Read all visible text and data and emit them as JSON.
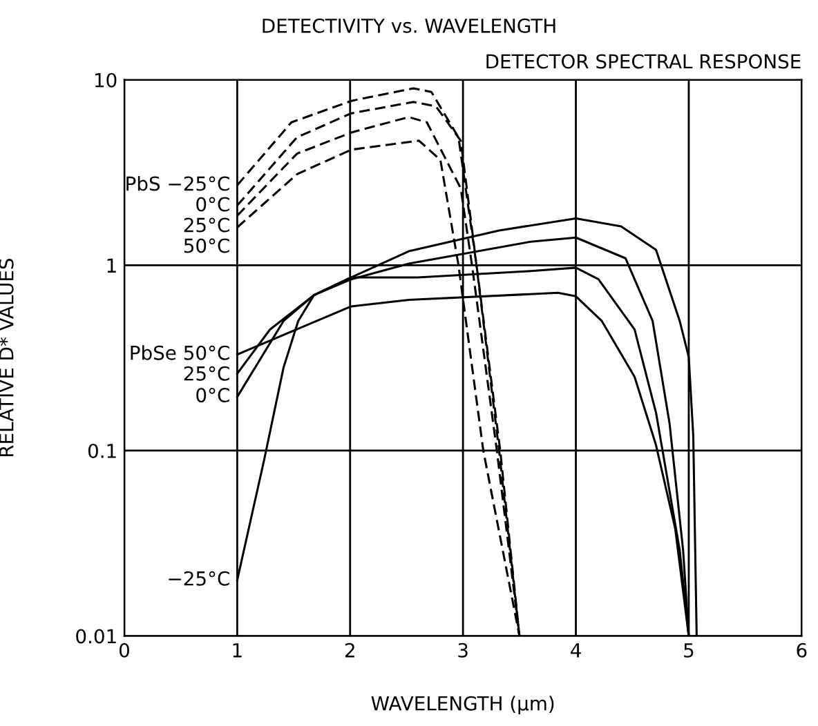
{
  "chart_data": {
    "type": "line",
    "title": "DETECTIVITY vs. WAVELENGTH",
    "subtitle": "DETECTOR SPECTRAL RESPONSE",
    "xlabel": "WAVELENGTH (µm)",
    "ylabel": "RELATIVE D* VALUES",
    "log": "y",
    "grid": true,
    "legend": false,
    "marker": "none",
    "xlim": [
      0,
      6
    ],
    "xticks": [
      0,
      1,
      2,
      3,
      4,
      5,
      6
    ],
    "ylim": [
      0.01,
      10
    ],
    "yticks": [
      0.01,
      0.1,
      1,
      10
    ],
    "series": [
      {
        "name": "PbS −25°C",
        "color": "#000000",
        "line_style": "dashed",
        "x": [
          1,
          1.48,
          2.01,
          2.56,
          2.72,
          2.96,
          3.12,
          3.33,
          3.5
        ],
        "values": [
          2.7,
          5.9,
          7.7,
          9.0,
          8.6,
          4.9,
          1.0,
          0.1,
          0.01
        ]
      },
      {
        "name": "0°C",
        "color": "#000000",
        "line_style": "dashed",
        "x": [
          1,
          1.53,
          2.01,
          2.56,
          2.76,
          2.98,
          3.09,
          3.32,
          3.5
        ],
        "values": [
          2.1,
          4.9,
          6.6,
          7.6,
          7.2,
          4.7,
          1.4,
          0.1,
          0.01
        ]
      },
      {
        "name": "25°C",
        "color": "#000000",
        "line_style": "dashed",
        "x": [
          1,
          1.53,
          2.01,
          2.52,
          2.68,
          2.98,
          3.08,
          3.3,
          3.5
        ],
        "values": [
          1.85,
          4.0,
          5.2,
          6.3,
          5.9,
          2.6,
          1.0,
          0.1,
          0.01
        ]
      },
      {
        "name": "50°C",
        "color": "#000000",
        "line_style": "dashed",
        "x": [
          1,
          1.53,
          2.01,
          2.61,
          2.8,
          2.96,
          3.18,
          3.5
        ],
        "values": [
          1.6,
          3.1,
          4.2,
          4.7,
          3.7,
          1.0,
          0.1,
          0.01
        ]
      },
      {
        "name": "PbSe 50°C",
        "color": "#000000",
        "line_style": "solid",
        "x": [
          1,
          2.01,
          2.52,
          3.84,
          4.0,
          4.23,
          4.52,
          4.71,
          4.88,
          5.0
        ],
        "values": [
          0.33,
          0.6,
          0.65,
          0.71,
          0.68,
          0.5,
          0.25,
          0.107,
          0.038,
          0.01
        ]
      },
      {
        "name": "25°C",
        "color": "#000000",
        "line_style": "solid",
        "x": [
          1,
          1.29,
          1.68,
          2.01,
          2.6,
          3.6,
          4.0,
          4.2,
          4.52,
          4.71,
          4.92,
          5.0
        ],
        "values": [
          0.26,
          0.45,
          0.69,
          0.86,
          0.86,
          0.93,
          0.97,
          0.84,
          0.45,
          0.16,
          0.029,
          0.01
        ]
      },
      {
        "name": "0°C",
        "color": "#000000",
        "line_style": "solid",
        "x": [
          1,
          1.41,
          1.68,
          2.01,
          2.52,
          3.6,
          4.0,
          4.44,
          4.68,
          4.83,
          4.95,
          5.0
        ],
        "values": [
          0.195,
          0.5,
          0.69,
          0.84,
          1.02,
          1.34,
          1.41,
          1.09,
          0.5,
          0.14,
          0.029,
          0.01
        ]
      },
      {
        "name": "−25°C",
        "color": "#000000",
        "line_style": "solid",
        "x": [
          1,
          1.24,
          1.41,
          1.54,
          1.68,
          2.01,
          2.52,
          3.32,
          4.0,
          4.4,
          4.71,
          4.92,
          5.0,
          5.04,
          5.07
        ],
        "values": [
          0.02,
          0.09,
          0.28,
          0.5,
          0.69,
          0.86,
          1.19,
          1.54,
          1.79,
          1.62,
          1.21,
          0.5,
          0.32,
          0.12,
          0.01
        ]
      }
    ]
  }
}
